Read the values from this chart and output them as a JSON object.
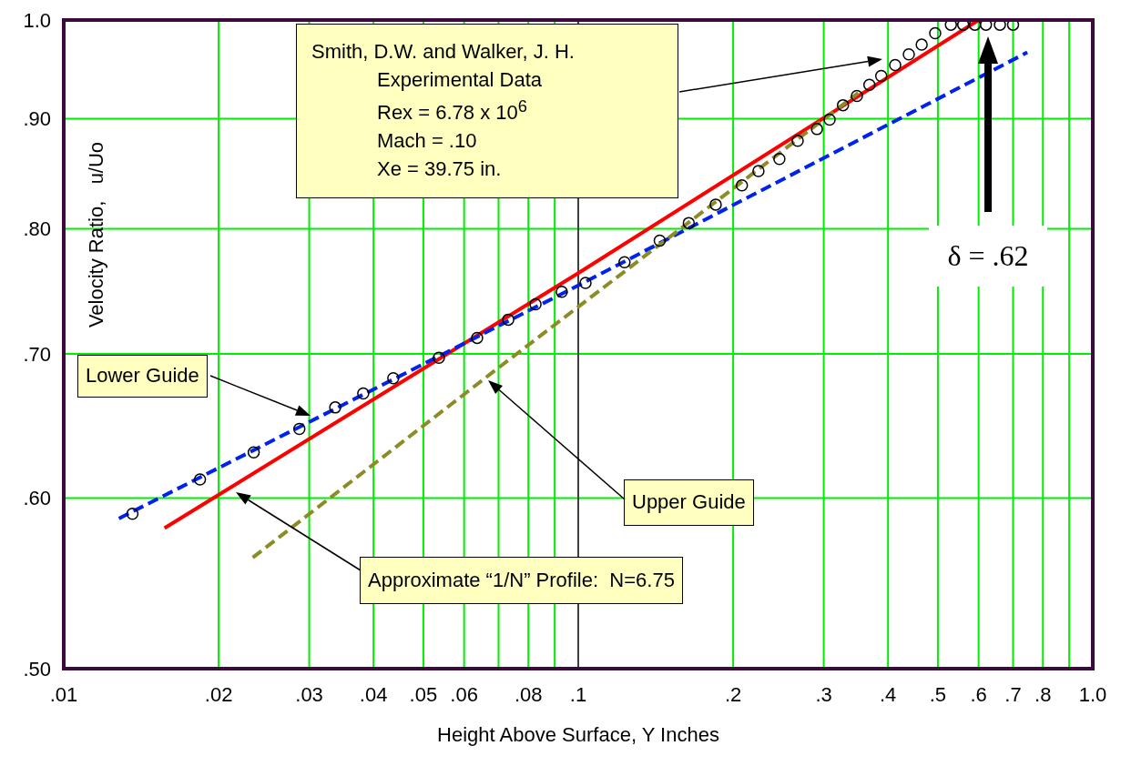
{
  "chart_data": {
    "type": "line",
    "xlabel": "Height Above Surface, Y  Inches",
    "ylabel": "Velocity Ratio,   u/Uo",
    "log": "xy",
    "xlim": [
      0.01,
      1.0
    ],
    "ylim": [
      0.5,
      1.0
    ],
    "xticks": [
      {
        "value": 0.01,
        "label": ".01"
      },
      {
        "value": 0.02,
        "label": ".02"
      },
      {
        "value": 0.03,
        "label": ".03"
      },
      {
        "value": 0.04,
        "label": ".04"
      },
      {
        "value": 0.05,
        "label": ".05"
      },
      {
        "value": 0.06,
        "label": ".06"
      },
      {
        "value": 0.07,
        "label": null
      },
      {
        "value": 0.08,
        "label": ".08"
      },
      {
        "value": 0.09,
        "label": null
      },
      {
        "value": 0.1,
        "label": ".1"
      },
      {
        "value": 0.2,
        "label": ".2"
      },
      {
        "value": 0.3,
        "label": ".3"
      },
      {
        "value": 0.4,
        "label": ".4"
      },
      {
        "value": 0.5,
        "label": ".5"
      },
      {
        "value": 0.6,
        "label": ".6"
      },
      {
        "value": 0.7,
        "label": ".7"
      },
      {
        "value": 0.8,
        "label": ".8"
      },
      {
        "value": 0.9,
        "label": null
      },
      {
        "value": 1.0,
        "label": "1.0"
      }
    ],
    "yticks": [
      {
        "value": 0.5,
        "label": ".50"
      },
      {
        "value": 0.6,
        "label": ".60"
      },
      {
        "value": 0.7,
        "label": ".70"
      },
      {
        "value": 0.8,
        "label": ".80"
      },
      {
        "value": 0.9,
        "label": ".90"
      },
      {
        "value": 1.0,
        "label": "1.0"
      }
    ],
    "grid": true,
    "legend": false,
    "ref_lines": [
      {
        "axis": "x",
        "value": 0.1,
        "color": "#404040"
      }
    ],
    "series": [
      {
        "type": "scatter",
        "color": "#000000",
        "marker": "circle",
        "x": [
          0.0136,
          0.0184,
          0.0234,
          0.0287,
          0.0337,
          0.0382,
          0.0437,
          0.0536,
          0.0636,
          0.0731,
          0.0826,
          0.0929,
          0.1033,
          0.123,
          0.144,
          0.164,
          0.185,
          0.208,
          0.224,
          0.246,
          0.267,
          0.291,
          0.308,
          0.327,
          0.348,
          0.368,
          0.388,
          0.413,
          0.439,
          0.465,
          0.494,
          0.53,
          0.56,
          0.59,
          0.62,
          0.66,
          0.7
        ],
        "values": [
          0.59,
          0.612,
          0.63,
          0.646,
          0.661,
          0.671,
          0.682,
          0.697,
          0.712,
          0.726,
          0.738,
          0.748,
          0.755,
          0.772,
          0.79,
          0.805,
          0.821,
          0.838,
          0.851,
          0.862,
          0.879,
          0.89,
          0.899,
          0.913,
          0.922,
          0.933,
          0.942,
          0.953,
          0.964,
          0.974,
          0.986,
          0.995,
          0.995,
          0.995,
          0.995,
          0.995,
          0.995
        ]
      },
      {
        "color": "#ff0000",
        "marker": "none",
        "line_style": "solid",
        "x": [
          0.0157,
          0.1,
          0.6
        ],
        "values": [
          0.581,
          0.763,
          1.0
        ]
      },
      {
        "color": "#0022ee",
        "marker": "none",
        "line_style": "dashed",
        "x": [
          0.0128,
          0.1,
          0.746
        ],
        "values": [
          0.587,
          0.753,
          0.966
        ]
      },
      {
        "color": "#8c8c26",
        "marker": "none",
        "line_style": "dashed",
        "x": [
          0.0233,
          0.068,
          0.35
        ],
        "values": [
          0.563,
          0.686,
          0.925
        ]
      }
    ],
    "annotations": [
      "Smith, D.W. and Walker, J. H.\nExperimental Data\nRex = 6.78 x 10$^{6}$\nMach = .10\nXe = 39.75 in.",
      "Lower Guide",
      "Upper Guide",
      "Approximate “1/N” Profile:  N=6.75",
      "δ = .62"
    ]
  }
}
